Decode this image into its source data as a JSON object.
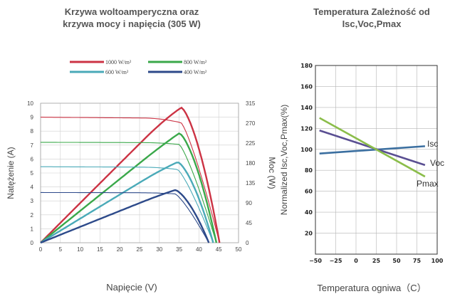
{
  "chart_data": [
    {
      "type": "line",
      "title": "Krzywa woltoamperyczna oraz\nkrzywa mocy i napięcia (305 W)",
      "xlabel": "Napięcie (V)",
      "ylabel": "Natężenie (A)",
      "y2label": "Moc (W)",
      "xlim": [
        0,
        50
      ],
      "ylim": [
        0,
        10
      ],
      "y2lim": [
        0,
        315
      ],
      "x_ticks": [
        "0",
        "5",
        "10",
        "15",
        "20",
        "25",
        "30",
        "35",
        "40",
        "45",
        "50"
      ],
      "y_ticks": [
        "0",
        "1",
        "2",
        "3",
        "4",
        "5",
        "6",
        "7",
        "8",
        "9",
        "10"
      ],
      "y2_ticks": [
        "0",
        "45",
        "90",
        "135",
        "180",
        "225",
        "270",
        "315"
      ],
      "grid": true,
      "legend": "top",
      "series": [
        {
          "name": "1000 W/m²",
          "color": "#cc3344",
          "isc": 9.0,
          "voc": 45.2,
          "vmp": 35.5,
          "imp": 8.6,
          "pmax": 305
        },
        {
          "name": "800 W/m²",
          "color": "#3aa84a",
          "isc": 7.2,
          "voc": 44.4,
          "vmp": 35.0,
          "imp": 7.05,
          "pmax": 247
        },
        {
          "name": "600 W/m²",
          "color": "#4aaab8",
          "isc": 5.45,
          "voc": 43.6,
          "vmp": 34.6,
          "imp": 5.25,
          "pmax": 182
        },
        {
          "name": "400 W/m²",
          "color": "#2d4a8a",
          "isc": 3.6,
          "voc": 42.5,
          "vmp": 34.0,
          "imp": 3.5,
          "pmax": 119
        }
      ]
    },
    {
      "type": "line",
      "title": "Temperatura Zależność od\nIsc,Voc,Pmax",
      "xlabel": "Temperatura ogniwa（C）",
      "ylabel": "Normalized Isc,Voc,Pmax(%)",
      "xlim": [
        -50,
        100
      ],
      "ylim": [
        0,
        180
      ],
      "x_ticks": [
        "−50",
        "−25",
        "0",
        "25",
        "50",
        "75",
        "100"
      ],
      "y_ticks": [
        "20",
        "40",
        "60",
        "80",
        "100",
        "120",
        "140",
        "160",
        "180"
      ],
      "grid": true,
      "series": [
        {
          "name": "Isc",
          "color": "#3b6fa0",
          "x": [
            -45,
            85
          ],
          "y": [
            96,
            103
          ]
        },
        {
          "name": "Voc",
          "color": "#5a4f92",
          "x": [
            -45,
            85
          ],
          "y": [
            118,
            85
          ]
        },
        {
          "name": "Pmax",
          "color": "#8bbd4a",
          "x": [
            -45,
            85
          ],
          "y": [
            130,
            74
          ]
        }
      ]
    }
  ]
}
